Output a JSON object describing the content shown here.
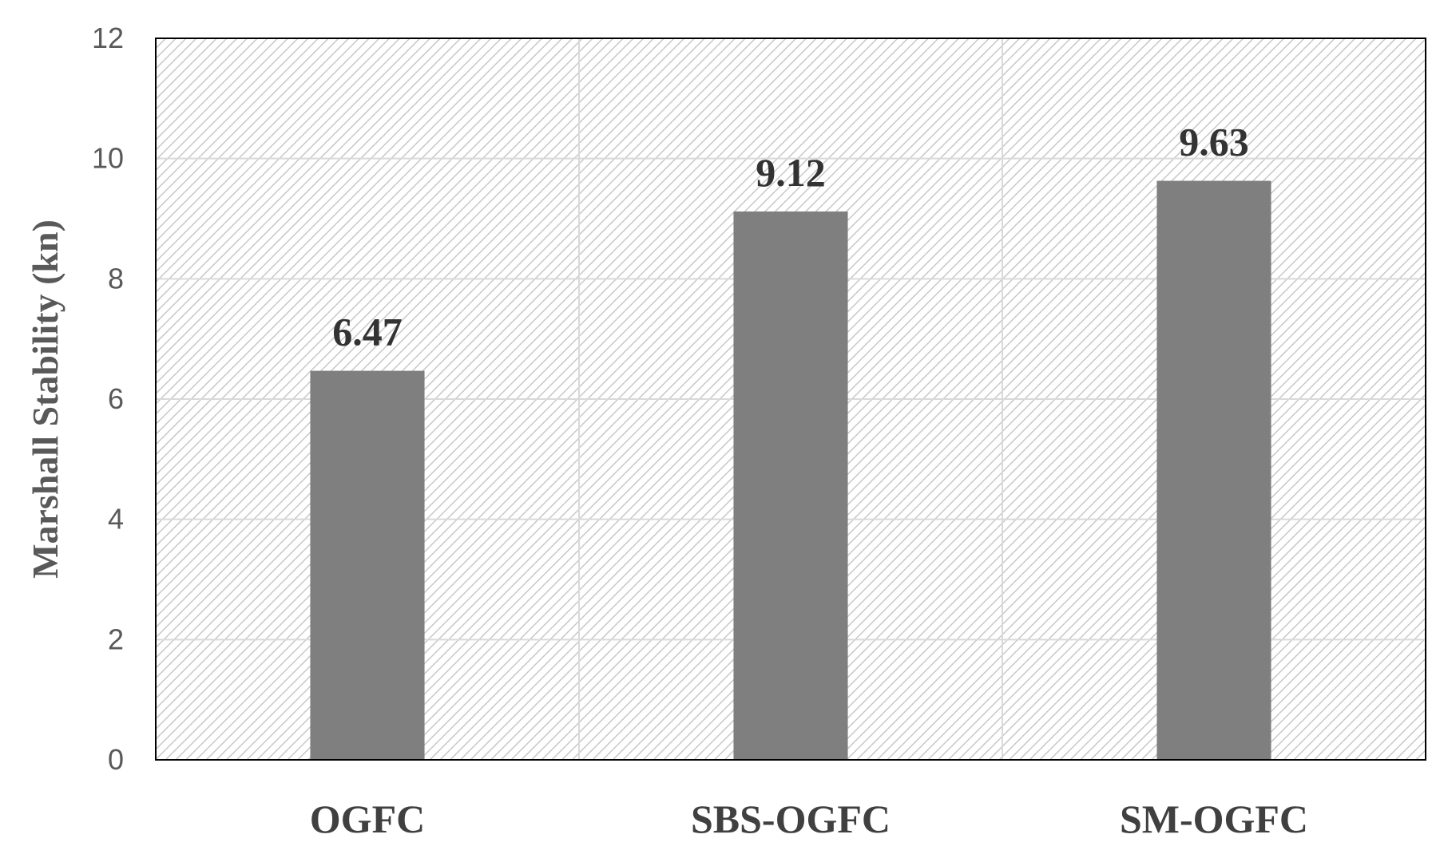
{
  "chart_data": {
    "type": "bar",
    "title": "",
    "xlabel": "",
    "ylabel": "Marshall Stability (kn)",
    "categories": [
      "OGFC",
      "SBS-OGFC",
      "SM-OGFC"
    ],
    "values": [
      6.47,
      9.12,
      9.63
    ],
    "data_labels": [
      "6.47",
      "9.12",
      "9.63"
    ],
    "ylim": [
      0,
      12
    ],
    "yticks": [
      0,
      2,
      4,
      6,
      8,
      10,
      12
    ],
    "grid": true,
    "legend": "none",
    "plot_background": "hatched",
    "colors": {
      "bar": "#7f7f7f",
      "grid": "#d9d9d9",
      "hatch": "#c8c8c8",
      "axis": "#000000"
    }
  }
}
